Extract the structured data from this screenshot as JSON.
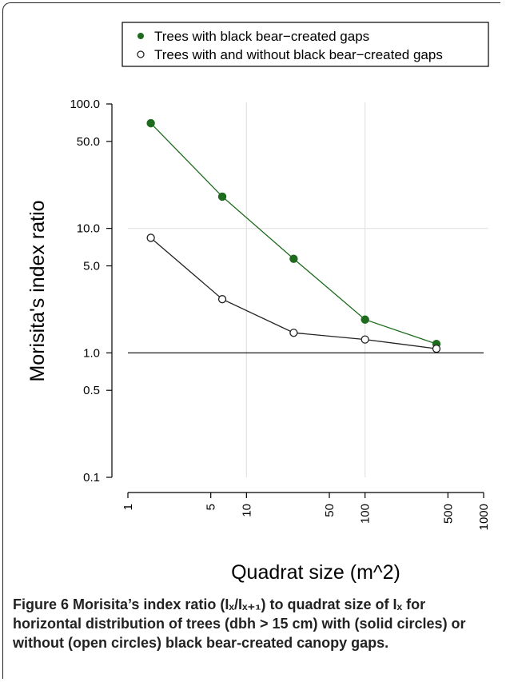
{
  "chart_data": {
    "type": "line",
    "x_scale": "log",
    "y_scale": "log",
    "xlabel": "Quadrat size (m^2)",
    "ylabel": "Morisita's index ratio",
    "xlim": [
      1,
      1000
    ],
    "ylim": [
      0.1,
      100
    ],
    "x_ticks": [
      1,
      5,
      10,
      50,
      100,
      500,
      1000
    ],
    "x_tick_labels": [
      "1",
      "5",
      "10",
      "50",
      "100",
      "500",
      "1000"
    ],
    "y_ticks": [
      0.1,
      0.5,
      1,
      5,
      10,
      50,
      100
    ],
    "y_tick_labels": [
      "0.1",
      "0.5",
      "1.0",
      "5.0",
      "10.0",
      "50.0",
      "100.0"
    ],
    "x_grid": [
      10,
      100
    ],
    "y_grid": [
      10
    ],
    "reference_line_y": 1,
    "legend_position": "top",
    "series": [
      {
        "name": "Trees with black bear−created gaps",
        "marker": "filled",
        "color": "#1e6b1e",
        "x": [
          1.56,
          6.25,
          25,
          100,
          400
        ],
        "y": [
          70,
          18,
          5.7,
          1.85,
          1.18
        ]
      },
      {
        "name": "Trees with and without black bear−created gaps",
        "marker": "open",
        "color": "#222222",
        "x": [
          1.56,
          6.25,
          25,
          100,
          400
        ],
        "y": [
          8.4,
          2.7,
          1.45,
          1.28,
          1.08
        ]
      }
    ]
  },
  "caption": {
    "label": "Figure 6",
    "text": " Morisita’s index ratio (Iₓ/Iₓ₊₁) to quadrat size of Iₓ for horizontal distribution of trees (dbh > 15 cm) with (solid circles) or without (open circles) black bear-created canopy gaps."
  }
}
